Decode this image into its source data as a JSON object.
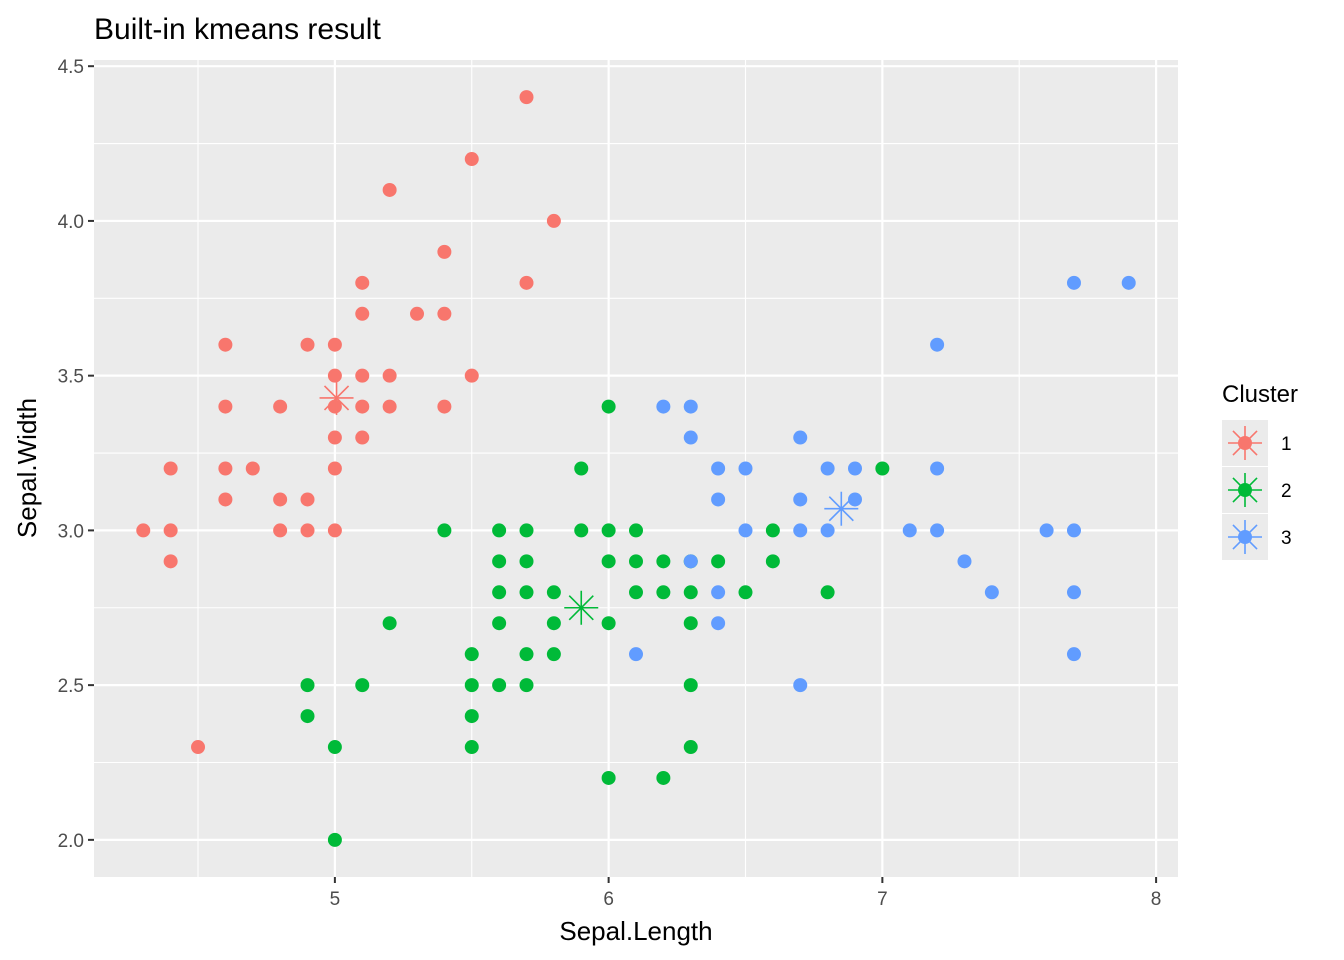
{
  "chart_data": {
    "type": "scatter",
    "title": "Built-in kmeans result",
    "xlabel": "Sepal.Length",
    "ylabel": "Sepal.Width",
    "xlim": [
      4.12,
      8.08
    ],
    "ylim": [
      1.88,
      4.52
    ],
    "x_ticks": [
      "5",
      "6",
      "7",
      "8"
    ],
    "x_tick_values": [
      5,
      6,
      7,
      8
    ],
    "y_ticks": [
      "2.0",
      "2.5",
      "3.0",
      "3.5",
      "4.0",
      "4.5"
    ],
    "y_tick_values": [
      2.0,
      2.5,
      3.0,
      3.5,
      4.0,
      4.5
    ],
    "grid": true,
    "legend": {
      "title": "Cluster",
      "placement": "right",
      "entries": [
        "1",
        "2",
        "3"
      ]
    },
    "series": [
      {
        "name": "1",
        "color": "#F8766D",
        "points": [
          [
            4.3,
            3.0
          ],
          [
            4.4,
            3.2
          ],
          [
            4.4,
            3.0
          ],
          [
            4.4,
            2.9
          ],
          [
            4.5,
            2.3
          ],
          [
            4.6,
            3.6
          ],
          [
            4.6,
            3.4
          ],
          [
            4.6,
            3.2
          ],
          [
            4.6,
            3.1
          ],
          [
            4.7,
            3.2
          ],
          [
            4.8,
            3.4
          ],
          [
            4.8,
            3.1
          ],
          [
            4.8,
            3.0
          ],
          [
            4.9,
            3.6
          ],
          [
            4.9,
            3.1
          ],
          [
            4.9,
            3.0
          ],
          [
            5.0,
            3.6
          ],
          [
            5.0,
            3.5
          ],
          [
            5.0,
            3.4
          ],
          [
            5.0,
            3.3
          ],
          [
            5.0,
            3.2
          ],
          [
            5.0,
            3.0
          ],
          [
            5.1,
            3.8
          ],
          [
            5.1,
            3.7
          ],
          [
            5.1,
            3.5
          ],
          [
            5.1,
            3.4
          ],
          [
            5.1,
            3.3
          ],
          [
            5.2,
            4.1
          ],
          [
            5.2,
            3.5
          ],
          [
            5.2,
            3.4
          ],
          [
            5.3,
            3.7
          ],
          [
            5.4,
            3.9
          ],
          [
            5.4,
            3.7
          ],
          [
            5.4,
            3.4
          ],
          [
            5.5,
            4.2
          ],
          [
            5.5,
            3.5
          ],
          [
            5.7,
            4.4
          ],
          [
            5.7,
            3.8
          ],
          [
            5.8,
            4.0
          ]
        ],
        "center": [
          5.006,
          3.428
        ]
      },
      {
        "name": "2",
        "color": "#00BA38",
        "points": [
          [
            4.9,
            2.5
          ],
          [
            4.9,
            2.4
          ],
          [
            5.0,
            2.3
          ],
          [
            5.0,
            2.0
          ],
          [
            5.1,
            2.5
          ],
          [
            5.2,
            2.7
          ],
          [
            5.4,
            3.0
          ],
          [
            5.5,
            2.6
          ],
          [
            5.5,
            2.5
          ],
          [
            5.5,
            2.4
          ],
          [
            5.5,
            2.3
          ],
          [
            5.6,
            3.0
          ],
          [
            5.6,
            2.9
          ],
          [
            5.6,
            2.8
          ],
          [
            5.6,
            2.7
          ],
          [
            5.6,
            2.5
          ],
          [
            5.7,
            3.0
          ],
          [
            5.7,
            2.9
          ],
          [
            5.7,
            2.8
          ],
          [
            5.7,
            2.6
          ],
          [
            5.7,
            2.5
          ],
          [
            5.8,
            2.8
          ],
          [
            5.8,
            2.7
          ],
          [
            5.8,
            2.6
          ],
          [
            5.9,
            3.2
          ],
          [
            5.9,
            3.0
          ],
          [
            6.0,
            3.4
          ],
          [
            6.0,
            3.0
          ],
          [
            6.0,
            2.9
          ],
          [
            6.0,
            2.7
          ],
          [
            6.0,
            2.2
          ],
          [
            6.1,
            3.0
          ],
          [
            6.1,
            2.9
          ],
          [
            6.1,
            2.8
          ],
          [
            6.2,
            2.9
          ],
          [
            6.2,
            2.8
          ],
          [
            6.2,
            2.2
          ],
          [
            6.3,
            2.9
          ],
          [
            6.3,
            2.8
          ],
          [
            6.3,
            2.7
          ],
          [
            6.3,
            2.5
          ],
          [
            6.3,
            2.3
          ],
          [
            6.4,
            2.9
          ],
          [
            6.5,
            2.8
          ],
          [
            6.6,
            3.0
          ],
          [
            6.6,
            2.9
          ],
          [
            6.8,
            2.8
          ],
          [
            7.0,
            3.2
          ]
        ],
        "center": [
          5.9,
          2.75
        ]
      },
      {
        "name": "3",
        "color": "#619CFF",
        "points": [
          [
            6.1,
            2.6
          ],
          [
            6.2,
            3.4
          ],
          [
            6.3,
            3.4
          ],
          [
            6.3,
            3.3
          ],
          [
            6.3,
            2.9
          ],
          [
            6.4,
            3.2
          ],
          [
            6.4,
            3.1
          ],
          [
            6.4,
            2.8
          ],
          [
            6.4,
            2.7
          ],
          [
            6.5,
            3.2
          ],
          [
            6.5,
            3.0
          ],
          [
            6.7,
            3.3
          ],
          [
            6.7,
            3.1
          ],
          [
            6.7,
            3.0
          ],
          [
            6.7,
            2.5
          ],
          [
            6.8,
            3.2
          ],
          [
            6.8,
            3.0
          ],
          [
            6.9,
            3.2
          ],
          [
            6.9,
            3.1
          ],
          [
            7.1,
            3.0
          ],
          [
            7.2,
            3.6
          ],
          [
            7.2,
            3.2
          ],
          [
            7.2,
            3.0
          ],
          [
            7.3,
            2.9
          ],
          [
            7.4,
            2.8
          ],
          [
            7.6,
            3.0
          ],
          [
            7.7,
            3.8
          ],
          [
            7.7,
            3.0
          ],
          [
            7.7,
            2.8
          ],
          [
            7.7,
            2.6
          ],
          [
            7.9,
            3.8
          ]
        ],
        "center": [
          6.85,
          3.07
        ]
      }
    ]
  }
}
